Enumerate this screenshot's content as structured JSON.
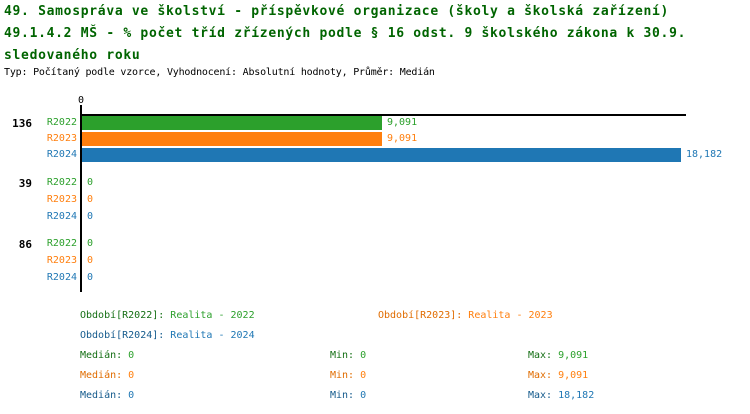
{
  "header": {
    "title_lines": [
      "49. Samospráva ve školství - příspěvkové organizace (školy a školská zařízení)",
      "49.1.4.2 MŠ - % počet tříd zřízených podle § 16 odst. 9 školského zákona k 30.9.",
      "sledovaného roku"
    ],
    "subtitle": "Typ: Počítaný podle vzorce, Vyhodnocení: Absolutní hodnoty, Průměr: Medián"
  },
  "colors": {
    "title": "#006400",
    "axis": "#000000",
    "r2022": "#2ca02c",
    "r2022_dark": "#146e14",
    "r2023": "#ff7f0e",
    "r2023_dark": "#e06c00",
    "r2024": "#1f77b4",
    "r2024_dark": "#145a8c"
  },
  "chart_data": {
    "type": "bar",
    "orientation": "horizontal",
    "x_tick_label": "0",
    "xlim": [
      0,
      18.182
    ],
    "grid": false,
    "categories": [
      "136",
      "39",
      "86"
    ],
    "series": [
      {
        "name": "R2022",
        "values": [
          9.091,
          0,
          0
        ]
      },
      {
        "name": "R2023",
        "values": [
          9.091,
          0,
          0
        ]
      },
      {
        "name": "R2024",
        "values": [
          18.182,
          0,
          0
        ]
      }
    ],
    "groups": [
      {
        "label": "136",
        "bars": [
          {
            "series": "R2022",
            "value": 9.091,
            "display": "9,091"
          },
          {
            "series": "R2023",
            "value": 9.091,
            "display": "9,091"
          },
          {
            "series": "R2024",
            "value": 18.182,
            "display": "18,182"
          }
        ]
      },
      {
        "label": "39",
        "bars": [
          {
            "series": "R2022",
            "value": 0,
            "display": "0"
          },
          {
            "series": "R2023",
            "value": 0,
            "display": "0"
          },
          {
            "series": "R2024",
            "value": 0,
            "display": "0"
          }
        ]
      },
      {
        "label": "86",
        "bars": [
          {
            "series": "R2022",
            "value": 0,
            "display": "0"
          },
          {
            "series": "R2023",
            "value": 0,
            "display": "0"
          },
          {
            "series": "R2024",
            "value": 0,
            "display": "0"
          }
        ]
      }
    ]
  },
  "legend": {
    "periods": [
      {
        "label": "Období[R2022]:",
        "value": "Realita - 2022"
      },
      {
        "label": "Období[R2023]:",
        "value": "Realita - 2023"
      },
      {
        "label": "Období[R2024]:",
        "value": "Realita - 2024"
      }
    ],
    "stats": [
      {
        "median_label": "Medián:",
        "median": "0",
        "min_label": "Min:",
        "min": "0",
        "max_label": "Max:",
        "max": "9,091"
      },
      {
        "median_label": "Medián:",
        "median": "0",
        "min_label": "Min:",
        "min": "0",
        "max_label": "Max:",
        "max": "9,091"
      },
      {
        "median_label": "Medián:",
        "median": "0",
        "min_label": "Min:",
        "min": "0",
        "max_label": "Max:",
        "max": "18,182"
      }
    ]
  }
}
